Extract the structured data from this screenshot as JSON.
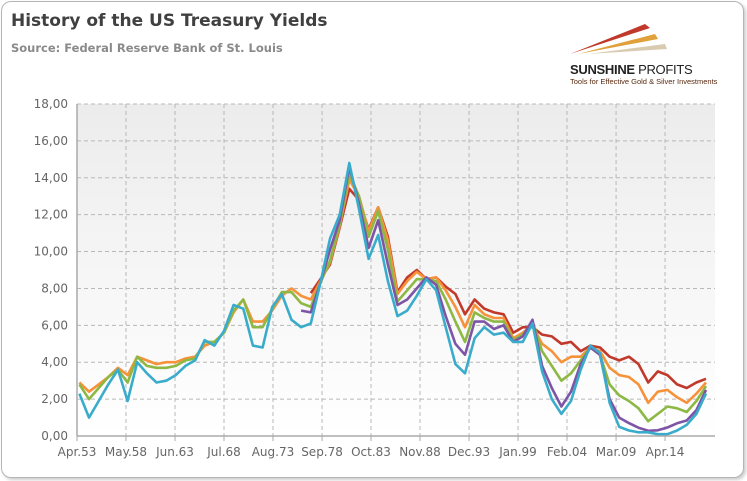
{
  "header": {
    "title": "History of the US Treasury Yields",
    "source": "Source: Federal Reserve Bank of St. Louis"
  },
  "logo": {
    "name_bold": "SUNSHINE",
    "name_light": " PROFITS",
    "tagline": "Tools for Effective Gold & Silver Investments"
  },
  "chart_data": {
    "type": "line",
    "ylim": [
      0,
      18
    ],
    "xlim": [
      1953.25,
      2019
    ],
    "grid": true,
    "legend": "none",
    "yticks": [
      "0,00",
      "2,00",
      "4,00",
      "6,00",
      "8,00",
      "10,00",
      "12,00",
      "14,00",
      "16,00",
      "18,00"
    ],
    "xticks": [
      "Apr.53",
      "May.58",
      "Jun.63",
      "Jul.68",
      "Aug.73",
      "Sep.78",
      "Oct.83",
      "Nov.88",
      "Dec.93",
      "Jan.99",
      "Feb.04",
      "Mar.09",
      "Apr.14"
    ],
    "xtick_values": [
      1953.25,
      1958.33,
      1963.42,
      1968.5,
      1973.58,
      1978.67,
      1983.75,
      1988.83,
      1993.92,
      1999.0,
      2004.08,
      2009.17,
      2014.25
    ],
    "series": [
      {
        "color": "#c0392b",
        "start": 1977,
        "values": [
          7.75,
          8.5,
          9.3,
          11.3,
          13.4,
          12.8,
          11.2,
          12.4,
          10.8,
          7.8,
          8.6,
          9.0,
          8.5,
          8.6,
          8.1,
          7.7,
          6.6,
          7.4,
          6.9,
          6.7,
          6.6,
          5.6,
          5.9,
          5.9,
          5.5,
          5.4,
          5.0,
          5.1,
          4.6,
          4.9,
          4.8,
          4.3,
          4.1,
          4.3,
          3.9,
          2.9,
          3.5,
          3.3,
          2.8,
          2.6,
          2.9,
          3.1
        ]
      },
      {
        "color": "#f7923a",
        "start": 1953,
        "values": [
          2.9,
          2.4,
          2.8,
          3.2,
          3.7,
          3.3,
          4.3,
          4.1,
          3.9,
          4.0,
          4.0,
          4.2,
          4.3,
          4.9,
          5.1,
          5.6,
          6.7,
          7.4,
          6.2,
          6.2,
          6.8,
          7.6,
          8.0,
          7.6,
          7.4,
          8.4,
          9.4,
          11.4,
          13.9,
          13.0,
          11.1,
          12.4,
          10.6,
          7.7,
          8.4,
          8.9,
          8.5,
          8.6,
          7.9,
          7.0,
          5.9,
          7.1,
          6.6,
          6.4,
          6.4,
          5.3,
          5.6,
          6.0,
          5.0,
          4.6,
          4.0,
          4.3,
          4.3,
          4.8,
          4.6,
          3.7,
          3.3,
          3.2,
          2.8,
          1.8,
          2.4,
          2.5,
          2.1,
          1.8,
          2.3,
          2.9
        ]
      },
      {
        "color": "#8db844",
        "start": 1953,
        "values": [
          2.8,
          2.0,
          2.6,
          3.2,
          3.6,
          2.9,
          4.3,
          3.8,
          3.7,
          3.7,
          3.8,
          4.1,
          4.2,
          5.1,
          5.1,
          5.6,
          6.8,
          7.4,
          5.9,
          5.9,
          6.9,
          7.8,
          7.8,
          7.2,
          7.0,
          8.3,
          9.5,
          11.5,
          14.2,
          13.0,
          10.8,
          12.2,
          10.1,
          7.3,
          7.9,
          8.5,
          8.5,
          8.4,
          7.4,
          6.2,
          5.1,
          6.7,
          6.4,
          6.2,
          6.2,
          5.2,
          5.5,
          6.2,
          4.6,
          3.8,
          3.0,
          3.4,
          4.1,
          4.8,
          4.4,
          2.8,
          2.2,
          1.9,
          1.5,
          0.8,
          1.2,
          1.6,
          1.5,
          1.3,
          1.9,
          2.7
        ]
      },
      {
        "color": "#7d55a6",
        "start": 1976,
        "values": [
          6.8,
          6.7,
          8.3,
          10.1,
          11.7,
          14.6,
          12.6,
          10.2,
          11.7,
          9.3,
          7.1,
          7.4,
          8.0,
          8.6,
          8.2,
          6.5,
          5.0,
          4.4,
          6.2,
          6.2,
          5.8,
          6.0,
          5.1,
          5.4,
          6.3,
          3.8,
          2.6,
          1.6,
          2.4,
          3.9,
          4.8,
          4.4,
          2.0,
          1.0,
          0.7,
          0.45,
          0.28,
          0.31,
          0.46,
          0.69,
          0.84,
          1.4,
          2.5
        ]
      },
      {
        "color": "#3aaccb",
        "start": 1953,
        "values": [
          2.3,
          1.0,
          1.9,
          2.8,
          3.6,
          1.9,
          4.0,
          3.4,
          2.9,
          3.0,
          3.3,
          3.8,
          4.1,
          5.2,
          4.9,
          5.7,
          7.1,
          6.9,
          4.9,
          4.8,
          7.0,
          7.7,
          6.3,
          5.9,
          6.1,
          8.3,
          10.7,
          12.0,
          14.8,
          12.3,
          9.6,
          10.9,
          8.4,
          6.5,
          6.8,
          7.6,
          8.5,
          7.9,
          5.9,
          3.9,
          3.4,
          5.3,
          5.9,
          5.5,
          5.6,
          5.1,
          5.1,
          6.1,
          3.5,
          2.0,
          1.2,
          1.9,
          3.6,
          4.9,
          4.5,
          1.8,
          0.5,
          0.3,
          0.2,
          0.2,
          0.1,
          0.1,
          0.3,
          0.6,
          1.2,
          2.3
        ]
      }
    ]
  }
}
